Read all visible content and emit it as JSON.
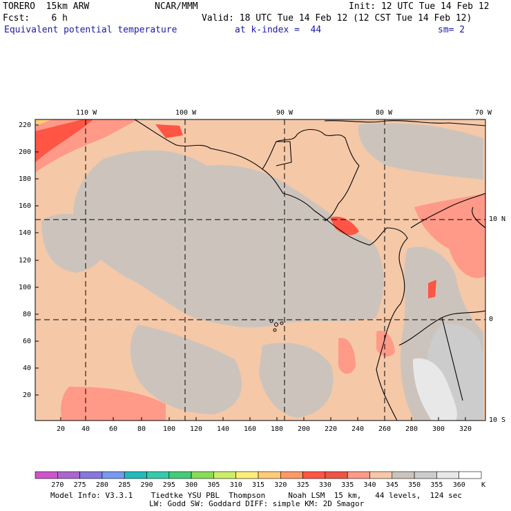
{
  "header": {
    "model": "TORERO  15km ARW",
    "org": "NCAR/MMM",
    "init": "Init: 12 UTC Tue 14 Feb 12",
    "fcst": "Fcst:    6 h",
    "valid": "Valid: 18 UTC Tue 14 Feb 12 (12 CST Tue 14 Feb 12)",
    "field": "Equivalent potential temperature",
    "level": "at k-index =  44",
    "smoothing": "sm= 2"
  },
  "map": {
    "lon_labels": [
      "110 W",
      "100 W",
      "90 W",
      "80 W",
      "70 W"
    ],
    "lat_labels": [
      "10 N",
      "0",
      "10 S"
    ],
    "x_ticks": [
      "20",
      "40",
      "60",
      "80",
      "100",
      "120",
      "140",
      "160",
      "180",
      "200",
      "220",
      "240",
      "260",
      "280",
      "300",
      "320"
    ],
    "y_ticks": [
      "220",
      "200",
      "180",
      "160",
      "140",
      "120",
      "100",
      "80",
      "60",
      "40",
      "20"
    ]
  },
  "colorbar": {
    "values": [
      "270",
      "275",
      "280",
      "285",
      "290",
      "295",
      "300",
      "305",
      "310",
      "315",
      "320",
      "325",
      "330",
      "335",
      "340",
      "345",
      "350",
      "355",
      "360"
    ],
    "unit": "K",
    "colors": [
      "#cc55cc",
      "#aa66cc",
      "#8877dd",
      "#7799ee",
      "#22bbbb",
      "#33ccaa",
      "#44cc77",
      "#88dd55",
      "#ccee66",
      "#ffee77",
      "#ffcc77",
      "#ff9966",
      "#ff5544",
      "#ee5544",
      "#ff9988",
      "#f5c8a8",
      "#ccc4bc",
      "#cccccc",
      "#e8e8e8",
      "#ffffff"
    ]
  },
  "footer": {
    "line1": "Model Info: V3.3.1    Tiedtke YSU PBL  Thompson     Noah LSM  15 km,   44 levels,  124 sec",
    "line2": "LW: Godd SW: Goddard DIFF: simple KM: 2D Smagor"
  }
}
